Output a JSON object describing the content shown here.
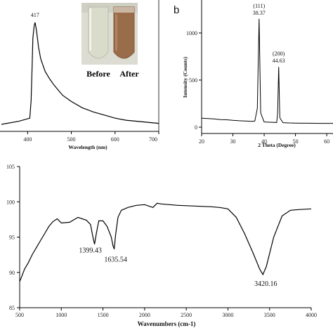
{
  "panels": {
    "a": {
      "peak_label": "417",
      "inset": {
        "before_label": "Before",
        "after_label": "After",
        "before_color": "#d9dccb",
        "after_color": "#9a6d4a"
      }
    },
    "b": {
      "tag": "b"
    }
  },
  "chart_data": [
    {
      "type": "line",
      "xlabel": "Wavelength (nm)",
      "ylabel": "",
      "xlim": [
        340,
        700
      ],
      "ylim": [
        0,
        1
      ],
      "xticks": [
        400,
        500,
        600,
        700
      ],
      "x": [
        340,
        380,
        405,
        408,
        410,
        412,
        415,
        417,
        420,
        425,
        430,
        440,
        450,
        460,
        470,
        480,
        500,
        525,
        550,
        575,
        600,
        625,
        650,
        675,
        700
      ],
      "series": [
        {
          "values": [
            0.02,
            0.05,
            0.08,
            0.25,
            0.55,
            0.85,
            0.97,
            1.0,
            0.93,
            0.76,
            0.65,
            0.53,
            0.46,
            0.4,
            0.35,
            0.3,
            0.24,
            0.18,
            0.14,
            0.11,
            0.08,
            0.06,
            0.05,
            0.04,
            0.03
          ]
        }
      ],
      "annotations": [
        {
          "x": 417,
          "text": "417"
        }
      ],
      "line_color": "#000000"
    },
    {
      "type": "line",
      "tag": "b",
      "xlabel": "2 Theta (Degree)",
      "ylabel": "Intensity (Counts)",
      "xlim": [
        20,
        62
      ],
      "ylim": [
        0,
        1350
      ],
      "xticks": [
        20,
        30,
        40,
        50,
        60
      ],
      "yticks": [
        0,
        500,
        1000
      ],
      "x": [
        20,
        22,
        24,
        26,
        28,
        30,
        32,
        34,
        36,
        37,
        37.8,
        38.37,
        38.9,
        40,
        42,
        44,
        44.3,
        44.63,
        45,
        46,
        48,
        50,
        52,
        54,
        56,
        58,
        60,
        62
      ],
      "series": [
        {
          "values": [
            95,
            92,
            88,
            80,
            78,
            72,
            68,
            66,
            62,
            65,
            200,
            1150,
            150,
            55,
            52,
            50,
            150,
            640,
            100,
            48,
            45,
            43,
            42,
            42,
            41,
            40,
            40,
            40
          ]
        }
      ],
      "annotations": [
        {
          "x": 38.37,
          "line1": "(111)",
          "line2": "38.37"
        },
        {
          "x": 44.63,
          "line1": "(200)",
          "line2": "44.63"
        }
      ],
      "line_color": "#000000"
    },
    {
      "type": "line",
      "xlabel": "Wavenumbers (cm-1)",
      "ylabel": "",
      "xlim": [
        500,
        4000
      ],
      "ylim": [
        85,
        105
      ],
      "xticks": [
        500,
        1000,
        1500,
        2000,
        2500,
        3000,
        3500,
        4000
      ],
      "yticks": [
        85,
        90,
        95,
        100,
        105
      ],
      "x": [
        500,
        530,
        560,
        600,
        650,
        700,
        750,
        800,
        850,
        900,
        950,
        1000,
        1100,
        1200,
        1300,
        1350,
        1380,
        1399,
        1420,
        1450,
        1500,
        1550,
        1600,
        1620,
        1635,
        1650,
        1680,
        1720,
        1800,
        1900,
        2000,
        2100,
        2150,
        2200,
        2400,
        2600,
        2800,
        2900,
        3000,
        3100,
        3200,
        3300,
        3380,
        3420,
        3460,
        3550,
        3650,
        3750,
        3850,
        4000
      ],
      "series": [
        {
          "values": [
            88.7,
            89.6,
            90.5,
            91.3,
            92.5,
            93.5,
            94.5,
            95.5,
            96.5,
            97.2,
            97.6,
            97.0,
            97.1,
            97.8,
            97.4,
            96.8,
            95.0,
            94.0,
            95.5,
            97.3,
            97.3,
            96.5,
            95.0,
            93.8,
            93.3,
            95.2,
            97.8,
            98.8,
            99.2,
            99.5,
            99.6,
            99.2,
            99.8,
            99.7,
            99.5,
            99.4,
            99.3,
            99.2,
            99.0,
            97.8,
            95.5,
            92.8,
            90.5,
            89.7,
            90.8,
            95.0,
            98.0,
            98.8,
            98.9,
            99.0
          ]
        }
      ],
      "annotations": [
        {
          "x": 1399.43,
          "text": "1399.43"
        },
        {
          "x": 1635.54,
          "text": "1635.54"
        },
        {
          "x": 3420.16,
          "text": "3420.16"
        }
      ],
      "line_color": "#000000"
    }
  ]
}
